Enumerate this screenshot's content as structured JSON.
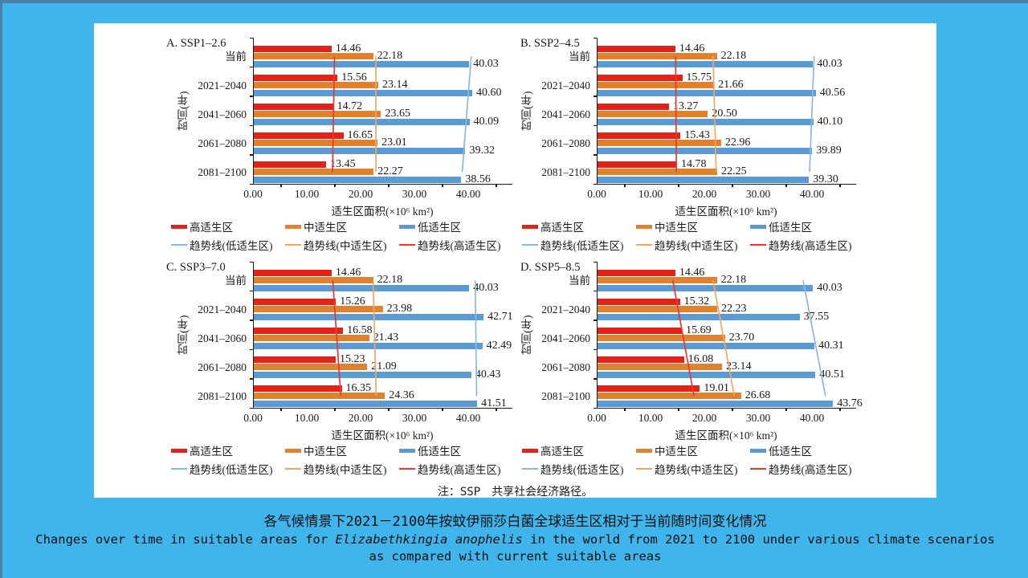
{
  "note": "注：SSP　共享社会经济路径。",
  "caption": {
    "zh": "各气候情景下2021－2100年按蚊伊丽莎白菌全球适生区相对于当前随时间变化情况",
    "en_pre": "Changes over time in suitable areas for ",
    "en_italic": "Elizabethkingia anophelis",
    "en_post": " in the world from 2021 to 2100 under various climate scenarios",
    "en_line2": "as compared with current suitable areas"
  },
  "colors": {
    "background": "#3fb5eb",
    "frame": "#4c7fa9",
    "panel": "#ffffff",
    "high_suitability": "#e32219",
    "medium_suitability": "#e1812b",
    "low_suitability": "#5b9bd5",
    "trend_low": "#88b8e4",
    "trend_medium": "#f3a763",
    "trend_high": "#f0352b"
  },
  "chart_data": [
    {
      "type": "bar",
      "title": "A. SSP1–2.6",
      "ylabel": "时间(年)",
      "xlabel": "适生区面积(×10⁶ km²)",
      "categories": [
        "当前",
        "2021–2040",
        "2041–2060",
        "2061–2080",
        "2081–2100"
      ],
      "xtick_labels": [
        "0.00",
        "10.00",
        "20.00",
        "30.00",
        "40.00"
      ],
      "xtick_values": [
        0,
        10,
        20,
        30,
        40
      ],
      "xlim": [
        0,
        48
      ],
      "grid": false,
      "legend_position": "bottom",
      "series": [
        {
          "name": "高适生区",
          "color": "#e32219",
          "values": [
            14.46,
            15.56,
            14.72,
            16.65,
            13.45
          ]
        },
        {
          "name": "中适生区",
          "color": "#e1812b",
          "values": [
            22.18,
            23.14,
            23.65,
            23.01,
            22.27
          ]
        },
        {
          "name": "低适生区",
          "color": "#5b9bd5",
          "values": [
            40.03,
            40.6,
            40.09,
            39.32,
            38.56
          ]
        }
      ],
      "trendlines": [
        {
          "name": "趋势线(低适生区)",
          "color": "#88b8e4",
          "series": 2
        },
        {
          "name": "趋势线(中适生区)",
          "color": "#f3a763",
          "series": 1
        },
        {
          "name": "趋势线(高适生区)",
          "color": "#f0352b",
          "series": 0
        }
      ]
    },
    {
      "type": "bar",
      "title": "B. SSP2–4.5",
      "ylabel": "时间(年)",
      "xlabel": "适生区面积(×10⁶ km²)",
      "categories": [
        "当前",
        "2021–2040",
        "2041–2060",
        "2061–2080",
        "2081–2100"
      ],
      "xtick_labels": [
        "0.00",
        "10.00",
        "20.00",
        "30.00",
        "40.00"
      ],
      "xtick_values": [
        0,
        10,
        20,
        30,
        40
      ],
      "xlim": [
        0,
        48
      ],
      "grid": false,
      "legend_position": "bottom",
      "series": [
        {
          "name": "高适生区",
          "color": "#e32219",
          "values": [
            14.46,
            15.75,
            13.27,
            15.43,
            14.78
          ]
        },
        {
          "name": "中适生区",
          "color": "#e1812b",
          "values": [
            22.18,
            21.66,
            20.5,
            22.96,
            22.25
          ]
        },
        {
          "name": "低适生区",
          "color": "#5b9bd5",
          "values": [
            40.03,
            40.56,
            40.1,
            39.89,
            39.3
          ]
        }
      ],
      "trendlines": [
        {
          "name": "趋势线(低适生区)",
          "color": "#88b8e4",
          "series": 2
        },
        {
          "name": "趋势线(中适生区)",
          "color": "#f3a763",
          "series": 1
        },
        {
          "name": "趋势线(高适生区)",
          "color": "#f0352b",
          "series": 0
        }
      ]
    },
    {
      "type": "bar",
      "title": "C. SSP3–7.0",
      "ylabel": "时间(年)",
      "xlabel": "适生区面积(×10⁶ km²)",
      "categories": [
        "当前",
        "2021–2040",
        "2041–2060",
        "2061–2080",
        "2081–2100"
      ],
      "xtick_labels": [
        "0.00",
        "10.00",
        "20.00",
        "30.00",
        "40.00"
      ],
      "xtick_values": [
        0,
        10,
        20,
        30,
        40
      ],
      "xlim": [
        0,
        48
      ],
      "grid": false,
      "legend_position": "bottom",
      "series": [
        {
          "name": "高适生区",
          "color": "#e32219",
          "values": [
            14.46,
            15.26,
            16.58,
            15.23,
            16.35
          ]
        },
        {
          "name": "中适生区",
          "color": "#e1812b",
          "values": [
            22.18,
            23.98,
            21.43,
            21.09,
            24.36
          ]
        },
        {
          "name": "低适生区",
          "color": "#5b9bd5",
          "values": [
            40.03,
            42.71,
            42.49,
            40.43,
            41.51
          ]
        }
      ],
      "trendlines": [
        {
          "name": "趋势线(低适生区)",
          "color": "#88b8e4",
          "series": 2
        },
        {
          "name": "趋势线(中适生区)",
          "color": "#f3a763",
          "series": 1
        },
        {
          "name": "趋势线(高适生区)",
          "color": "#f0352b",
          "series": 0
        }
      ]
    },
    {
      "type": "bar",
      "title": "D. SSP5–8.5",
      "ylabel": "时间(年)",
      "xlabel": "适生区面积(×10⁶ km²)",
      "categories": [
        "当前",
        "2021–2040",
        "2041–2060",
        "2061–2080",
        "2081–2100"
      ],
      "xtick_labels": [
        "0.00",
        "10.00",
        "20.00",
        "30.00",
        "40.00"
      ],
      "xtick_values": [
        0,
        10,
        20,
        30,
        40
      ],
      "xlim": [
        0,
        48
      ],
      "grid": false,
      "legend_position": "bottom",
      "series": [
        {
          "name": "高适生区",
          "color": "#e32219",
          "values": [
            14.46,
            15.32,
            15.69,
            16.08,
            19.01
          ]
        },
        {
          "name": "中适生区",
          "color": "#e1812b",
          "values": [
            22.18,
            22.23,
            23.7,
            23.14,
            26.68
          ]
        },
        {
          "name": "低适生区",
          "color": "#5b9bd5",
          "values": [
            40.03,
            37.55,
            40.31,
            40.51,
            43.76
          ]
        }
      ],
      "trendlines": [
        {
          "name": "趋势线(低适生区)",
          "color": "#88b8e4",
          "series": 2
        },
        {
          "name": "趋势线(中适生区)",
          "color": "#f3a763",
          "series": 1
        },
        {
          "name": "趋势线(高适生区)",
          "color": "#f0352b",
          "series": 0
        }
      ]
    }
  ]
}
